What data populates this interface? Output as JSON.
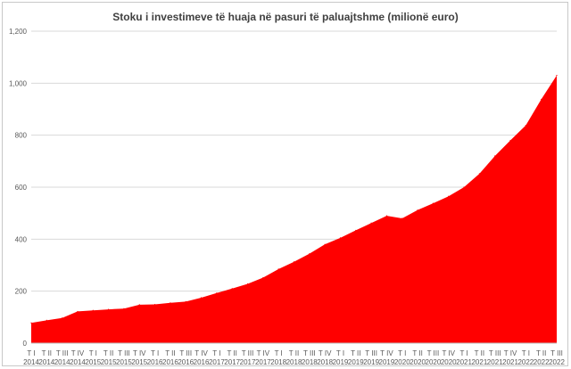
{
  "chart_data": {
    "type": "area",
    "title": "Stoku i investimeve të huaja në pasuri të paluajtshme (milionë euro)",
    "xlabel": "",
    "ylabel": "",
    "ylim": [
      0,
      1200
    ],
    "yticks": [
      0,
      200,
      400,
      600,
      800,
      1000,
      1200
    ],
    "ytick_labels": [
      "0",
      "200",
      "400",
      "600",
      "800",
      "1,000",
      "1,200"
    ],
    "grid": true,
    "legend": "none",
    "series_color": "#ff0000",
    "categories": [
      "T I 2014",
      "T II 2014",
      "T III 2014",
      "T IV 2014",
      "T I 2015",
      "T II 2015",
      "T III 2015",
      "T IV 2015",
      "T I 2016",
      "T II 2016",
      "T III 2016",
      "T IV 2016",
      "T I 2017",
      "T II 2017",
      "T III 2017",
      "T IV 2017",
      "T I 2018",
      "T II 2018",
      "T III 2018",
      "T IV 2018",
      "T I 2019",
      "T II 2019",
      "T III 2019",
      "T IV 2019",
      "T I 2020",
      "T II 2020",
      "T III 2020",
      "T IV 2020",
      "T I 2021",
      "T II 2021",
      "T III 2021",
      "T IV 2021",
      "T I 2022",
      "T II 2022",
      "T III 2022"
    ],
    "tick_top": [
      "T I",
      "T II",
      "T III",
      "T IV",
      "T I",
      "T II",
      "T III",
      "T IV",
      "T I",
      "T II",
      "T III",
      "T IV",
      "T I",
      "T II",
      "T III",
      "T IV",
      "T I",
      "T II",
      "T III",
      "T IV",
      "T I",
      "T II",
      "T III",
      "T IV",
      "T I",
      "T II",
      "T III",
      "T IV",
      "T I",
      "T II",
      "T III",
      "T IV",
      "T I",
      "T II",
      "T III"
    ],
    "tick_bottom": [
      "2014",
      "2014",
      "2014",
      "2014",
      "2015",
      "2015",
      "2015",
      "2015",
      "2016",
      "2016",
      "2016",
      "2016",
      "2017",
      "2017",
      "2017",
      "2017",
      "2018",
      "2018",
      "2018",
      "2018",
      "2019",
      "2019",
      "2019",
      "2019",
      "2020",
      "2020",
      "2020",
      "2020",
      "2021",
      "2021",
      "2021",
      "2021",
      "2022",
      "2022",
      "2022"
    ],
    "values": [
      78,
      88,
      97,
      122,
      126,
      130,
      133,
      148,
      149,
      155,
      160,
      175,
      193,
      210,
      228,
      252,
      285,
      313,
      344,
      380,
      405,
      434,
      462,
      490,
      480,
      512,
      538,
      565,
      600,
      652,
      720,
      780,
      838,
      938,
      1030
    ]
  }
}
